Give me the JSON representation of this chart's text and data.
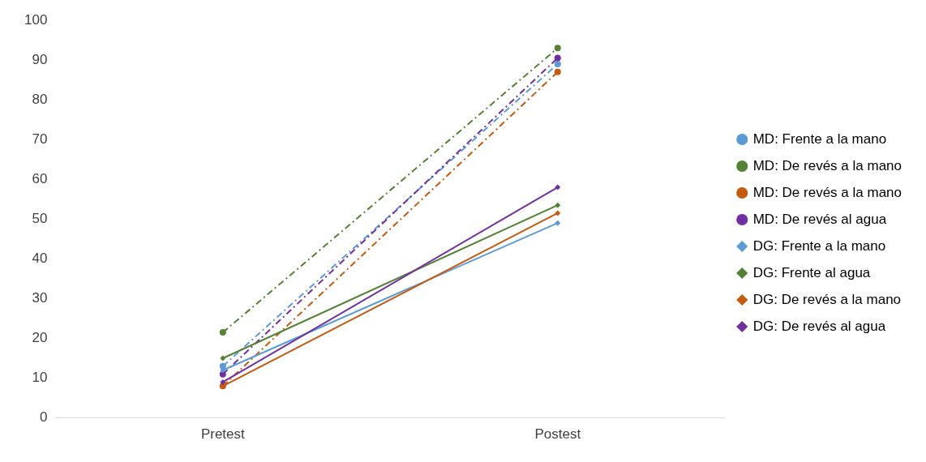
{
  "chart_data": {
    "type": "line",
    "categories": [
      "Pretest",
      "Postest"
    ],
    "ylim": [
      0,
      100
    ],
    "yticks": [
      0,
      10,
      20,
      30,
      40,
      50,
      60,
      70,
      80,
      90,
      100
    ],
    "grid": false,
    "legend": "right",
    "series": [
      {
        "name": "MD: Frente a la mano",
        "color": "#5b9bd5",
        "values": [
          13,
          89
        ],
        "marker": "circle",
        "line_style": "dashed"
      },
      {
        "name": "MD: De revés a la mano",
        "color": "#548235",
        "values": [
          21.5,
          93
        ],
        "marker": "circle",
        "line_style": "dashed"
      },
      {
        "name": "MD: De revés a la mano",
        "color": "#c55a11",
        "values": [
          8,
          87
        ],
        "marker": "circle",
        "line_style": "dashed"
      },
      {
        "name": "MD: De revés al agua",
        "color": "#7030a0",
        "values": [
          11,
          90.5
        ],
        "marker": "circle",
        "line_style": "dashed"
      },
      {
        "name": "DG: Frente a la mano",
        "color": "#5b9bd5",
        "values": [
          12,
          49
        ],
        "marker": "diamond",
        "line_style": "solid"
      },
      {
        "name": "DG: Frente al agua",
        "color": "#548235",
        "values": [
          15,
          53.5
        ],
        "marker": "diamond",
        "line_style": "solid"
      },
      {
        "name": "DG: De revés a la mano",
        "color": "#c55a11",
        "values": [
          8,
          51.5
        ],
        "marker": "diamond",
        "line_style": "solid"
      },
      {
        "name": "DG: De revés al agua",
        "color": "#7030a0",
        "values": [
          9,
          58
        ],
        "marker": "diamond",
        "line_style": "solid"
      }
    ]
  }
}
